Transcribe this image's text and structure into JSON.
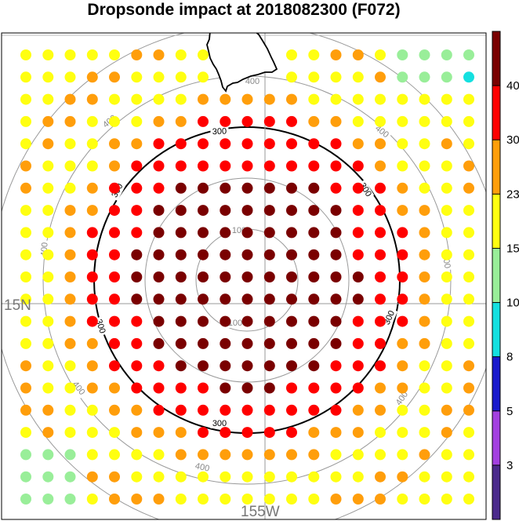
{
  "title": "Dropsonde impact at 2018082300 (F072)",
  "map": {
    "lat_label": "15N",
    "lon_label": "155W",
    "range_rings": [
      {
        "value": 100,
        "label": "100",
        "color": "#999999"
      },
      {
        "value": 200,
        "label": "",
        "color": "#999999"
      },
      {
        "value": 300,
        "label": "300",
        "color": "#000000"
      },
      {
        "value": 400,
        "label": "400",
        "color": "#999999"
      },
      {
        "value": 500,
        "label": "",
        "color": "#999999"
      }
    ],
    "dot_grid_cols": 21,
    "dot_grid_rows": 21
  },
  "colorbar": {
    "labels": [
      "3",
      "5",
      "8",
      "10",
      "15",
      "23",
      "30",
      "40"
    ],
    "colors": [
      "#4b2a8c",
      "#a340e0",
      "#1a1acc",
      "#14e0e0",
      "#99ee99",
      "#ffff11",
      "#ff9e0b",
      "#ff0000",
      "#7a0000"
    ]
  },
  "legend_colors": {
    "1": "#99ee99",
    "2": "#14e0e0",
    "3": "#ffff11",
    "4": "#ff9e0b",
    "5": "#ff0000",
    "6": "#7a0000"
  }
}
